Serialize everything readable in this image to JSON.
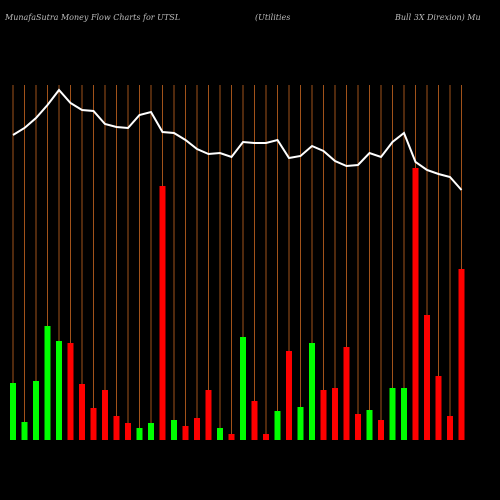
{
  "chart_data": {
    "type": "bar_line",
    "title": "MunafaSutra  Money Flow  Charts for UTSL",
    "subtitle": "(Utilities",
    "subtitle_right": "Bull 3X  Direxion) Mu",
    "ylim": [
      0,
      355
    ],
    "values": [
      57,
      18,
      59,
      114,
      99,
      97,
      56,
      32,
      50,
      24,
      17,
      12,
      17,
      254,
      20,
      14,
      22,
      50,
      12,
      6,
      103,
      39,
      6,
      29,
      89,
      33,
      97,
      50,
      52,
      93,
      26,
      30,
      20,
      52,
      52,
      272,
      125,
      64,
      24,
      171
    ],
    "colors": [
      "#00ff00",
      "#00ff00",
      "#00ff00",
      "#00ff00",
      "#00ff00",
      "#ff0000",
      "#ff0000",
      "#ff0000",
      "#ff0000",
      "#ff0000",
      "#ff0000",
      "#00ff00",
      "#00ff00",
      "#ff0000",
      "#00ff00",
      "#ff0000",
      "#ff0000",
      "#ff0000",
      "#00ff00",
      "#ff0000",
      "#00ff00",
      "#ff0000",
      "#ff0000",
      "#00ff00",
      "#ff0000",
      "#00ff00",
      "#00ff00",
      "#ff0000",
      "#ff0000",
      "#ff0000",
      "#ff0000",
      "#00ff00",
      "#ff0000",
      "#00ff00",
      "#00ff00",
      "#ff0000",
      "#ff0000",
      "#ff0000",
      "#ff0000",
      "#ff0000"
    ],
    "line": {
      "color": "#ffffff",
      "values": [
        305,
        312,
        322,
        335,
        350,
        337,
        330,
        329,
        316,
        313,
        312,
        325,
        328,
        308,
        307,
        300,
        291,
        286,
        287,
        283,
        298,
        297,
        297,
        300,
        282,
        284,
        294,
        289,
        279,
        274,
        275,
        287,
        283,
        298,
        307,
        278,
        270,
        266,
        263,
        250
      ]
    },
    "gridline_color": "#a0521a"
  }
}
